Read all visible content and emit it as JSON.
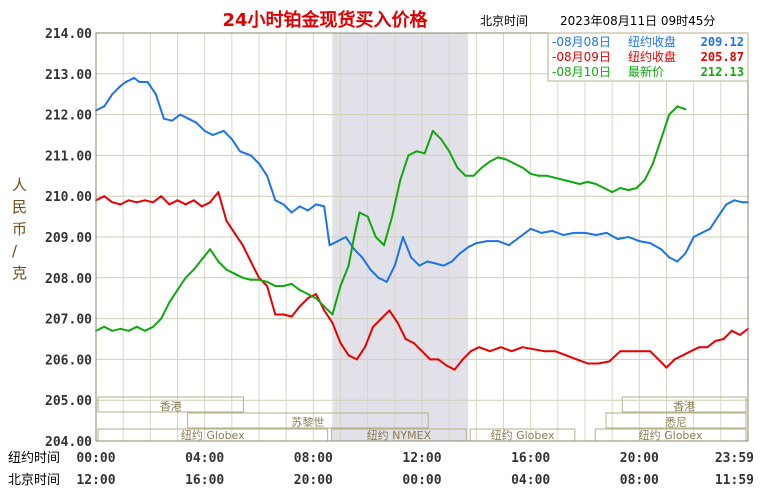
{
  "chart_data": {
    "type": "line",
    "title": "24小时铂金现货买入价格",
    "subtitle_tz": "北京时间",
    "timestamp": "2023年08月11日 09时45分",
    "ylabel": "人民币/克",
    "ylim": [
      204,
      214
    ],
    "y_ticks": [
      "214.00",
      "213.00",
      "212.00",
      "211.00",
      "210.00",
      "209.00",
      "208.00",
      "207.00",
      "206.00",
      "205.00",
      "204.00"
    ],
    "x_rows": [
      {
        "label": "纽约时间",
        "ticks": [
          "00:00",
          "04:00",
          "08:00",
          "12:00",
          "16:00",
          "20:00",
          "23:59"
        ]
      },
      {
        "label": "北京时间",
        "ticks": [
          "12:00",
          "16:00",
          "20:00",
          "00:00",
          "04:00",
          "08:00",
          "11:59"
        ]
      }
    ],
    "x_hours": [
      0,
      4,
      8,
      12,
      16,
      20,
      24
    ],
    "highlight_hours": [
      8.7,
      13.7
    ],
    "legend": [
      {
        "date": "08月08日",
        "label": "纽约收盘",
        "value": "209.12",
        "color": "#1e73e6"
      },
      {
        "date": "08月09日",
        "label": "纽约收盘",
        "value": "205.87",
        "color": "#e60000"
      },
      {
        "date": "08月10日",
        "label": "最新价",
        "value": "212.13",
        "color": "#10a810"
      }
    ],
    "sessions": [
      {
        "name": "香港",
        "start": 0,
        "end": 5.5,
        "row": 1
      },
      {
        "name": "苏黎世",
        "start": 3.3,
        "end": 12.3,
        "row": 2
      },
      {
        "name": "纽约 Globex",
        "start": 0,
        "end": 8.6,
        "row": 3
      },
      {
        "name": "纽约 NYMEX",
        "start": 8.6,
        "end": 13.7,
        "row": 3
      },
      {
        "name": "纽约 Globex",
        "start": 13.7,
        "end": 17.7,
        "row": 3
      },
      {
        "name": "悉尼",
        "start": 18.7,
        "end": 24,
        "row": 2
      },
      {
        "name": "香港",
        "start": 19.3,
        "end": 24,
        "row": 1
      },
      {
        "name": "纽约 Globex",
        "start": 18.3,
        "end": 24,
        "row": 3
      }
    ],
    "series": [
      {
        "date": "08月08日",
        "color": "#1e73e6",
        "x": [
          0,
          0.3,
          0.6,
          0.9,
          1.1,
          1.4,
          1.6,
          1.9,
          2.2,
          2.5,
          2.8,
          3.1,
          3.4,
          3.7,
          4.0,
          4.3,
          4.7,
          5.0,
          5.3,
          5.5,
          5.7,
          6.0,
          6.3,
          6.6,
          6.9,
          7.2,
          7.5,
          7.8,
          8.1,
          8.4,
          8.6,
          8.9,
          9.2,
          9.5,
          9.8,
          10.1,
          10.4,
          10.7,
          11.0,
          11.3,
          11.6,
          11.9,
          12.2,
          12.5,
          12.8,
          13.1,
          13.4,
          13.7,
          14.0,
          14.4,
          14.8,
          15.2,
          15.6,
          16.0,
          16.4,
          16.8,
          17.2,
          17.6,
          18.0,
          18.4,
          18.8,
          19.2,
          19.6,
          20.0,
          20.4,
          20.8,
          21.1,
          21.4,
          21.7,
          22.0,
          22.3,
          22.6,
          22.9,
          23.2,
          23.5,
          23.8,
          24.0
        ],
        "y": [
          212.1,
          212.2,
          212.5,
          212.7,
          212.8,
          212.9,
          212.8,
          212.8,
          212.5,
          211.9,
          211.85,
          212.0,
          211.9,
          211.8,
          211.6,
          211.5,
          211.6,
          211.4,
          211.1,
          211.05,
          211.0,
          210.8,
          210.5,
          209.9,
          209.8,
          209.6,
          209.75,
          209.65,
          209.8,
          209.75,
          208.8,
          208.9,
          209.0,
          208.7,
          208.5,
          208.2,
          208.0,
          207.9,
          208.3,
          209.0,
          208.5,
          208.3,
          208.4,
          208.35,
          208.3,
          208.4,
          208.6,
          208.75,
          208.85,
          208.9,
          208.9,
          208.8,
          209.0,
          209.2,
          209.1,
          209.15,
          209.05,
          209.1,
          209.1,
          209.05,
          209.1,
          208.95,
          209.0,
          208.9,
          208.85,
          208.7,
          208.5,
          208.4,
          208.6,
          209.0,
          209.1,
          209.2,
          209.5,
          209.8,
          209.9,
          209.85,
          209.85
        ]
      },
      {
        "date": "08月09日",
        "color": "#e60000",
        "x": [
          0,
          0.3,
          0.6,
          0.9,
          1.2,
          1.5,
          1.8,
          2.1,
          2.4,
          2.7,
          3.0,
          3.3,
          3.6,
          3.9,
          4.2,
          4.5,
          4.8,
          5.1,
          5.4,
          5.7,
          6.0,
          6.3,
          6.6,
          6.9,
          7.2,
          7.5,
          7.8,
          8.1,
          8.4,
          8.7,
          9.0,
          9.3,
          9.6,
          9.9,
          10.2,
          10.5,
          10.8,
          11.1,
          11.4,
          11.7,
          12.0,
          12.3,
          12.6,
          12.9,
          13.2,
          13.5,
          13.8,
          14.1,
          14.5,
          14.9,
          15.3,
          15.7,
          16.1,
          16.5,
          16.9,
          17.3,
          17.7,
          18.1,
          18.5,
          18.9,
          19.3,
          19.7,
          20.1,
          20.4,
          20.7,
          21.0,
          21.3,
          21.6,
          21.9,
          22.2,
          22.5,
          22.8,
          23.1,
          23.4,
          23.7,
          24.0
        ],
        "y": [
          209.9,
          210.0,
          209.85,
          209.8,
          209.9,
          209.85,
          209.9,
          209.85,
          210.0,
          209.8,
          209.9,
          209.8,
          209.9,
          209.75,
          209.85,
          210.1,
          209.4,
          209.1,
          208.8,
          208.4,
          208.0,
          207.8,
          207.1,
          207.1,
          207.05,
          207.3,
          207.5,
          207.6,
          207.2,
          206.9,
          206.4,
          206.1,
          206.0,
          206.3,
          206.8,
          207.0,
          207.2,
          206.9,
          206.5,
          206.4,
          206.2,
          206.0,
          206.0,
          205.85,
          205.75,
          206.0,
          206.2,
          206.3,
          206.2,
          206.3,
          206.2,
          206.3,
          206.25,
          206.2,
          206.2,
          206.1,
          206.0,
          205.9,
          205.9,
          205.95,
          206.2,
          206.2,
          206.2,
          206.2,
          206.0,
          205.8,
          206.0,
          206.1,
          206.2,
          206.3,
          206.3,
          206.45,
          206.5,
          206.7,
          206.6,
          206.75
        ]
      },
      {
        "date": "08月10日",
        "color": "#10a810",
        "x": [
          0,
          0.3,
          0.6,
          0.9,
          1.2,
          1.5,
          1.8,
          2.1,
          2.4,
          2.7,
          3.0,
          3.3,
          3.6,
          3.9,
          4.2,
          4.5,
          4.8,
          5.1,
          5.4,
          5.7,
          6.0,
          6.3,
          6.6,
          6.9,
          7.2,
          7.5,
          7.8,
          8.1,
          8.4,
          8.7,
          9.0,
          9.3,
          9.5,
          9.7,
          10.0,
          10.3,
          10.6,
          10.9,
          11.2,
          11.5,
          11.8,
          12.1,
          12.4,
          12.7,
          13.0,
          13.3,
          13.6,
          13.9,
          14.2,
          14.5,
          14.8,
          15.1,
          15.4,
          15.7,
          16.0,
          16.3,
          16.6,
          16.9,
          17.2,
          17.5,
          17.8,
          18.1,
          18.4,
          18.7,
          19.0,
          19.3,
          19.6,
          19.9,
          20.2,
          20.5,
          20.8,
          21.1,
          21.4,
          21.7
        ],
        "y": [
          206.7,
          206.8,
          206.7,
          206.75,
          206.7,
          206.8,
          206.7,
          206.8,
          207.0,
          207.4,
          207.7,
          208.0,
          208.2,
          208.45,
          208.7,
          208.4,
          208.2,
          208.1,
          208.0,
          207.95,
          207.95,
          207.9,
          207.8,
          207.8,
          207.85,
          207.7,
          207.6,
          207.5,
          207.3,
          207.1,
          207.8,
          208.3,
          209.0,
          209.6,
          209.5,
          209.0,
          208.8,
          209.5,
          210.4,
          211.0,
          211.1,
          211.05,
          211.6,
          211.4,
          211.1,
          210.7,
          210.5,
          210.5,
          210.7,
          210.85,
          210.95,
          210.9,
          210.8,
          210.7,
          210.55,
          210.5,
          210.5,
          210.45,
          210.4,
          210.35,
          210.3,
          210.35,
          210.3,
          210.2,
          210.1,
          210.2,
          210.15,
          210.2,
          210.4,
          210.8,
          211.4,
          212.0,
          212.2,
          212.13
        ]
      }
    ]
  }
}
